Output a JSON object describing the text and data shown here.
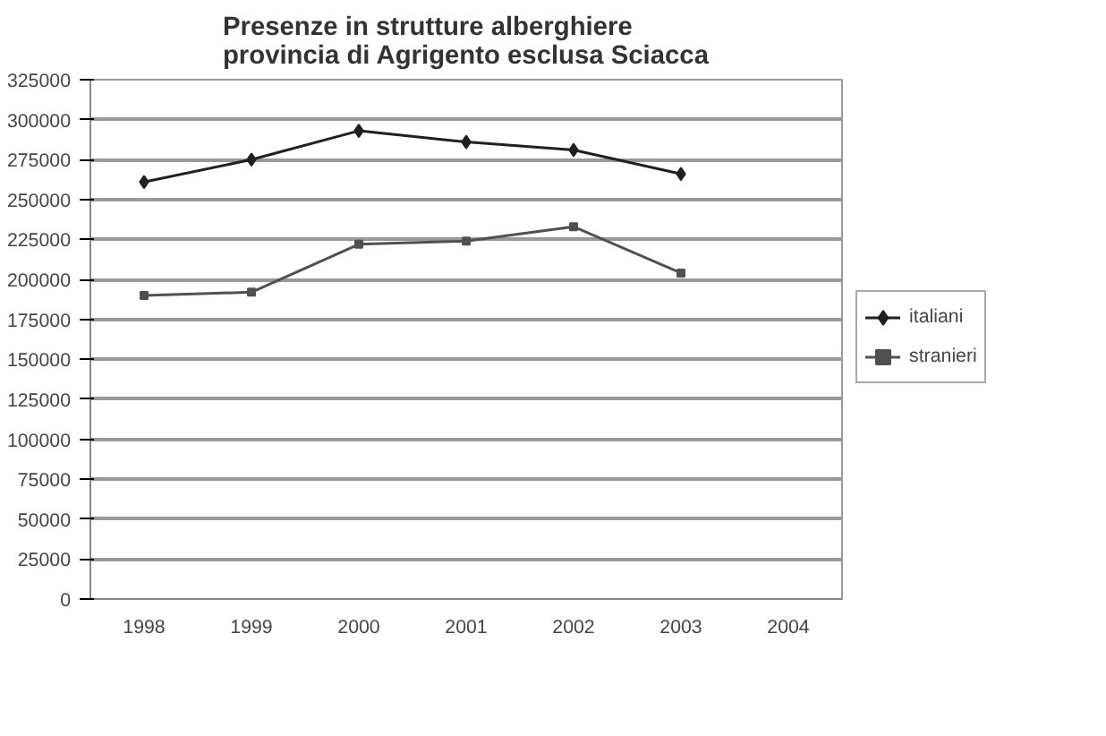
{
  "chart_data": {
    "type": "line",
    "title": "Presenze in strutture alberghiere\nprovincia di Agrigento esclusa Sciacca",
    "categories": [
      "1998",
      "1999",
      "2000",
      "2001",
      "2002",
      "2003",
      "2004"
    ],
    "series": [
      {
        "name": "italiani",
        "color": "#202020",
        "marker": "diamond",
        "values": [
          261000,
          275000,
          293000,
          286000,
          281000,
          266000,
          null
        ]
      },
      {
        "name": "stranieri",
        "color": "#505050",
        "marker": "square",
        "values": [
          190000,
          192000,
          222000,
          224000,
          233000,
          204000,
          null
        ]
      }
    ],
    "ylim": [
      0,
      325000
    ],
    "yticks": [
      0,
      25000,
      50000,
      75000,
      100000,
      125000,
      150000,
      175000,
      200000,
      225000,
      250000,
      275000,
      300000,
      325000
    ],
    "grid": "y",
    "legend": "right",
    "line_style": "solid"
  }
}
